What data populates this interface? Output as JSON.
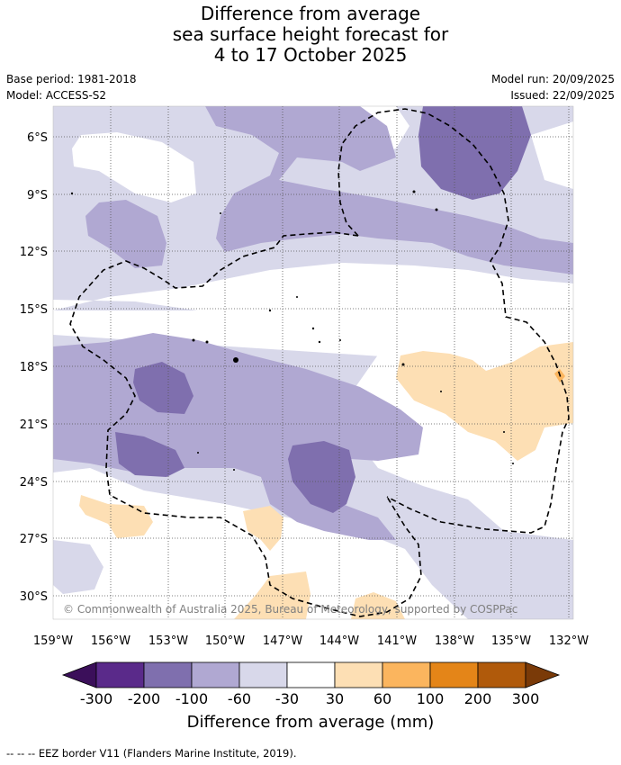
{
  "title": {
    "line1": "Difference from average",
    "line2": "sea surface height forecast for",
    "line3": "4 to 17 October 2025"
  },
  "meta": {
    "base_period": "Base period: 1981-2018",
    "model": "Model: ACCESS-S2",
    "model_run": "Model run: 20/09/2025",
    "issued": "Issued: 22/09/2025"
  },
  "map": {
    "lon_labels": [
      "159°W",
      "156°W",
      "153°W",
      "150°W",
      "147°W",
      "144°W",
      "141°W",
      "138°W",
      "135°W",
      "132°W"
    ],
    "lat_labels": [
      "6°S",
      "9°S",
      "12°S",
      "15°S",
      "18°S",
      "21°S",
      "24°S",
      "27°S",
      "30°S"
    ],
    "copyright": "© Commonwealth of Australia 2025, Bureau of Meteorology, supported by COSPPac"
  },
  "legend": {
    "title": "Difference from average (mm)",
    "tick_labels": [
      "-300",
      "-200",
      "-100",
      "-60",
      "-30",
      "30",
      "60",
      "100",
      "200",
      "300"
    ],
    "colors": [
      "#3b0f5a",
      "#5a2a8a",
      "#7f6fae",
      "#b0a8d2",
      "#d8d8ea",
      "#ffffff",
      "#fddfb4",
      "#fbb55e",
      "#e48518",
      "#b05a0b",
      "#7a3a08"
    ]
  },
  "footer": "--  --  -- EEZ border V11 (Flanders Marine Institute, 2019)."
}
